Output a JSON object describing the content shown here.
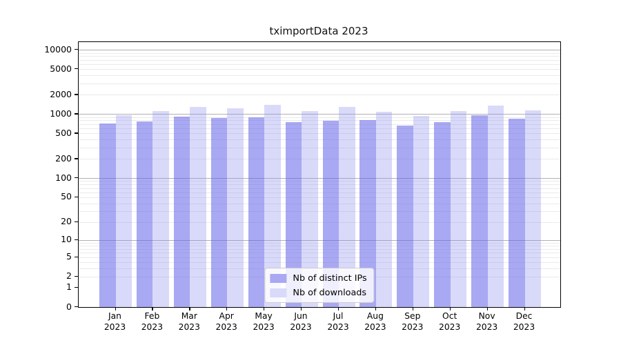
{
  "chart_data": {
    "type": "bar",
    "title": "tximportData 2023",
    "categories": [
      "Jan",
      "Feb",
      "Mar",
      "Apr",
      "May",
      "Jun",
      "Jul",
      "Aug",
      "Sep",
      "Oct",
      "Nov",
      "Dec"
    ],
    "category_year": "2023",
    "series": [
      {
        "name": "Nb of distinct IPs",
        "color": "#a8a8f3",
        "fill": "rgba(97,97,233,0.55)",
        "values": [
          710,
          770,
          905,
          870,
          900,
          760,
          780,
          815,
          665,
          760,
          970,
          860
        ]
      },
      {
        "name": "Nb of downloads",
        "color": "#d9d9fa",
        "fill": "rgba(146,146,241,0.35)",
        "values": [
          960,
          1120,
          1290,
          1230,
          1410,
          1110,
          1280,
          1080,
          940,
          1120,
          1350,
          1150
        ]
      }
    ],
    "y_ticks": [
      0,
      1,
      2,
      5,
      10,
      20,
      50,
      100,
      200,
      500,
      1000,
      2000,
      5000,
      10000
    ],
    "y_scale": "log1p",
    "ylim": [
      0,
      13000
    ],
    "grid": "horizontal",
    "grid_major_ticks": [
      10,
      100,
      1000,
      10000
    ],
    "legend_position": "bottom-center",
    "colors": {
      "grid_major": "#b0b0b0",
      "grid_minor": "#eaeaea",
      "axis": "#000000",
      "background": "#ffffff"
    }
  }
}
